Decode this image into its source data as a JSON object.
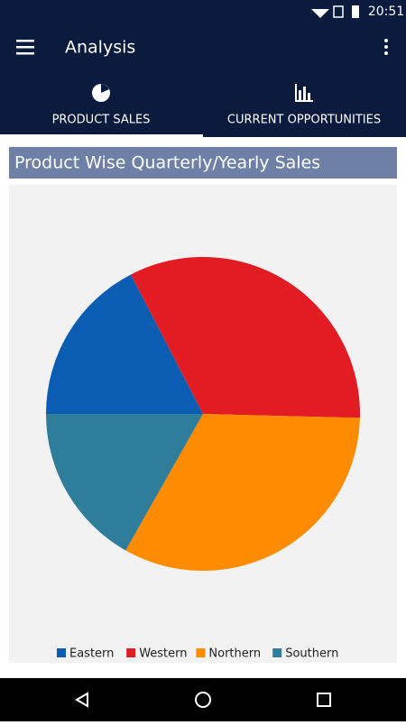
{
  "status_bar": {
    "time": "20:51"
  },
  "app_bar": {
    "title": "Analysis"
  },
  "tabs": [
    "PRODUCT SALES",
    "CURRENT OPPORTUNITIES"
  ],
  "chart_data": {
    "type": "pie",
    "title": "Product Wise Quarterly/Yearly Sales",
    "categories": [
      "Eastern",
      "Western",
      "Northern",
      "Southern"
    ],
    "values": [
      17.4,
      33,
      32.8,
      16.8
    ],
    "colors": [
      "#0a5db3",
      "#e31b23",
      "#ff8c00",
      "#2e7d9a"
    ],
    "legend": "bottom"
  }
}
